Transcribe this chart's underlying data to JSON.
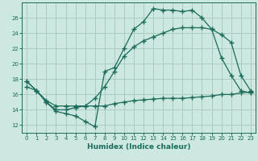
{
  "xlabel": "Humidex (Indice chaleur)",
  "bg_color": "#cce8e0",
  "grid_color": "#aaccbf",
  "line_color": "#1a6b5a",
  "xlim": [
    -0.5,
    23.5
  ],
  "ylim": [
    11.0,
    28.0
  ],
  "xticks": [
    0,
    1,
    2,
    3,
    4,
    5,
    6,
    7,
    8,
    9,
    10,
    11,
    12,
    13,
    14,
    15,
    16,
    17,
    18,
    19,
    20,
    21,
    22,
    23
  ],
  "yticks": [
    12,
    14,
    16,
    18,
    20,
    22,
    24,
    26
  ],
  "line1_x": [
    0,
    1,
    2,
    3,
    4,
    5,
    6,
    7,
    8,
    9,
    10,
    11,
    12,
    13,
    14,
    15,
    16,
    17,
    18,
    19,
    20,
    21,
    22,
    23
  ],
  "line1_y": [
    17.7,
    16.5,
    15.0,
    13.8,
    13.5,
    13.2,
    12.5,
    11.8,
    19.0,
    19.5,
    22.0,
    24.5,
    25.5,
    27.2,
    27.0,
    27.0,
    26.8,
    27.0,
    26.0,
    24.5,
    20.8,
    18.5,
    16.5,
    16.2
  ],
  "line2_x": [
    0,
    1,
    2,
    3,
    4,
    5,
    6,
    7,
    8,
    9,
    10,
    11,
    12,
    13,
    14,
    15,
    16,
    17,
    18,
    19,
    20,
    21,
    22,
    23
  ],
  "line2_y": [
    17.7,
    16.5,
    15.0,
    14.0,
    14.0,
    14.3,
    14.5,
    15.5,
    17.0,
    19.0,
    21.0,
    22.2,
    23.0,
    23.5,
    24.0,
    24.5,
    24.7,
    24.7,
    24.7,
    24.5,
    23.8,
    22.8,
    18.5,
    16.5
  ],
  "line3_x": [
    0,
    1,
    2,
    3,
    4,
    5,
    6,
    7,
    8,
    9,
    10,
    11,
    12,
    13,
    14,
    15,
    16,
    17,
    18,
    19,
    20,
    21,
    22,
    23
  ],
  "line3_y": [
    17.0,
    16.5,
    15.2,
    14.5,
    14.5,
    14.5,
    14.5,
    14.5,
    14.5,
    14.8,
    15.0,
    15.2,
    15.3,
    15.4,
    15.5,
    15.5,
    15.5,
    15.6,
    15.7,
    15.8,
    16.0,
    16.0,
    16.2,
    16.3
  ]
}
